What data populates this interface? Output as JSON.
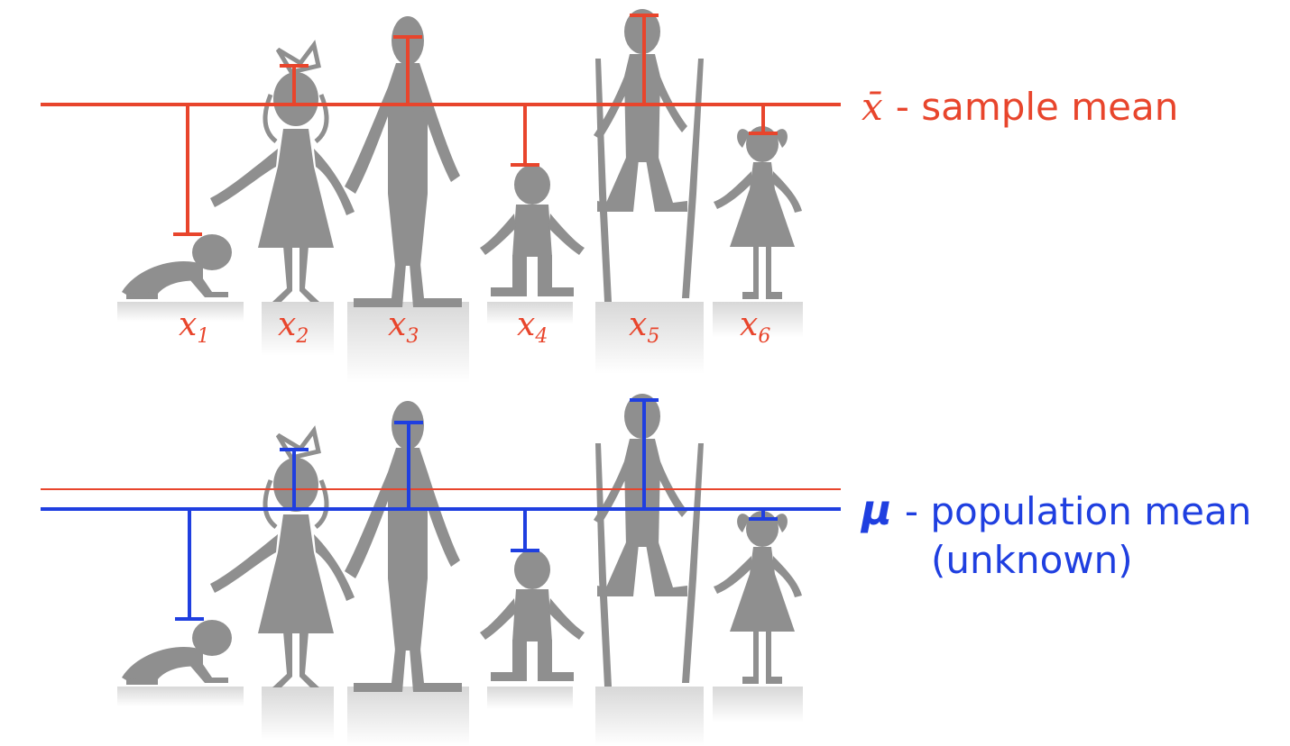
{
  "colors": {
    "sample": "#e8452c",
    "population": "#1f3fe0",
    "figure": "#8f8f8f",
    "background": "#ffffff"
  },
  "top_panel": {
    "mean_symbol": "x̄",
    "mean_label": "- sample mean",
    "children": [
      {
        "label": "x",
        "index": "1",
        "figure": "crawling-baby"
      },
      {
        "label": "x",
        "index": "2",
        "figure": "girl-with-bow"
      },
      {
        "label": "x",
        "index": "3",
        "figure": "tall-figure"
      },
      {
        "label": "x",
        "index": "4",
        "figure": "small-child"
      },
      {
        "label": "x",
        "index": "5",
        "figure": "figure-on-stilts"
      },
      {
        "label": "x",
        "index": "6",
        "figure": "girl-in-dress"
      }
    ]
  },
  "bottom_panel": {
    "mean_symbol": "μ",
    "mean_label": "- population mean",
    "mean_note": "(unknown)"
  }
}
